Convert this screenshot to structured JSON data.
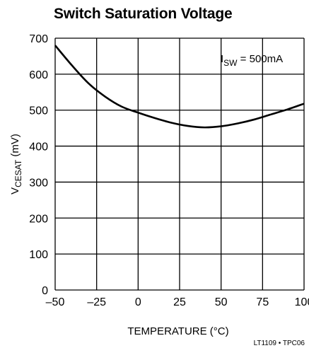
{
  "chart_data": {
    "type": "line",
    "title": "Switch Saturation Voltage",
    "xlabel": "TEMPERATURE (°C)",
    "ylabel": {
      "main": "V",
      "sub": "CESAT",
      "rest": " (mV)"
    },
    "xlim": [
      -50,
      100
    ],
    "ylim": [
      0,
      700
    ],
    "xticks": [
      -50,
      -25,
      0,
      25,
      50,
      75,
      100
    ],
    "xtick_labels": [
      "–50",
      "–25",
      "0",
      "25",
      "50",
      "75",
      "100"
    ],
    "yticks": [
      0,
      100,
      200,
      300,
      400,
      500,
      600,
      700
    ],
    "ytick_labels": [
      "0",
      "100",
      "200",
      "300",
      "400",
      "500",
      "600",
      "700"
    ],
    "grid": true,
    "annotation": {
      "main": "I",
      "sub": "SW",
      "rest": " = 500mA"
    },
    "series": [
      {
        "x": [
          -50,
          -40,
          -30,
          -20,
          -10,
          0,
          10,
          20,
          30,
          40,
          50,
          60,
          70,
          80,
          90,
          100
        ],
        "values": [
          680,
          625,
          575,
          538,
          510,
          493,
          478,
          465,
          456,
          452,
          455,
          463,
          474,
          488,
          502,
          518
        ]
      }
    ],
    "footer": "LT1109 • TPC06"
  }
}
